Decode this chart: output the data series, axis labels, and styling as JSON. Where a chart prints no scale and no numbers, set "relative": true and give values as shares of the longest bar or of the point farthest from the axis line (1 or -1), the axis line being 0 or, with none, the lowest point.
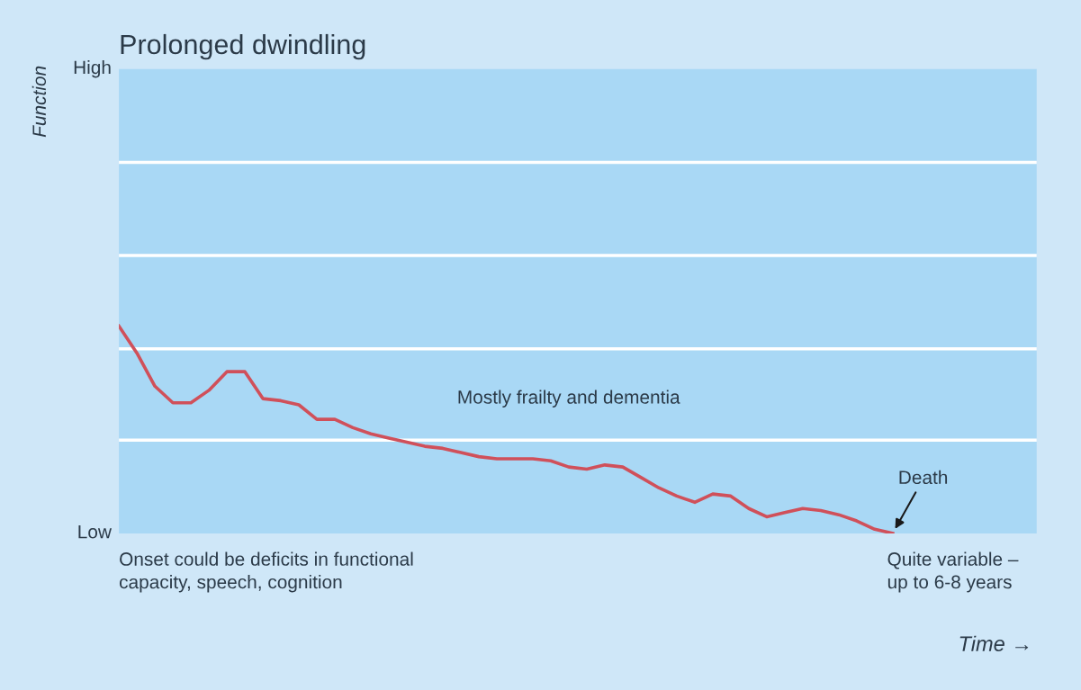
{
  "chart_data": {
    "type": "line",
    "title": "Prolonged dwindling",
    "xlabel": "Time →",
    "relative": true,
    "categories": [
      null,
      null,
      null,
      null,
      null,
      null,
      null,
      null,
      null,
      null,
      null,
      null,
      null,
      null,
      null,
      null,
      null,
      null,
      null,
      null,
      null,
      null,
      null,
      null,
      null,
      null,
      null,
      null,
      null,
      null,
      null,
      null,
      null,
      null,
      null,
      null,
      null,
      null,
      null,
      null,
      null,
      null,
      null,
      null,
      null,
      null,
      null,
      null,
      null,
      null,
      null,
      null
    ],
    "series": [
      {
        "color": "#d0505a",
        "values": [
          1.0,
          0.87,
          0.71,
          0.63,
          0.63,
          0.69,
          0.78,
          0.78,
          0.65,
          0.64,
          0.62,
          0.55,
          0.55,
          0.51,
          0.48,
          0.46,
          0.44,
          0.42,
          0.41,
          0.39,
          0.37,
          0.36,
          0.36,
          0.36,
          0.35,
          0.32,
          0.31,
          0.33,
          0.32,
          0.27,
          0.22,
          0.18,
          0.15,
          0.19,
          0.18,
          0.12,
          0.08,
          0.1,
          0.12,
          0.11,
          0.09,
          0.06,
          0.02,
          0,
          null,
          null,
          null,
          null,
          null,
          null,
          null,
          null
        ]
      }
    ],
    "ref_lines": [
      {
        "axis": "y",
        "value": 0.45,
        "color": "#ffffff"
      },
      {
        "axis": "y",
        "value": 0.89,
        "color": "#ffffff"
      },
      {
        "axis": "y",
        "value": 1.34,
        "color": "#ffffff"
      },
      {
        "axis": "y",
        "value": 1.79,
        "color": "#ffffff"
      }
    ],
    "marker": "none",
    "line_style": "solid",
    "annotations": [
      "High",
      "Low",
      "Mostly frailty and dementia",
      "Death",
      "Onset could be deficits in functional\ncapacity, speech, cognition",
      "Quite variable –\nup to 6-8 years",
      "Function"
    ]
  }
}
